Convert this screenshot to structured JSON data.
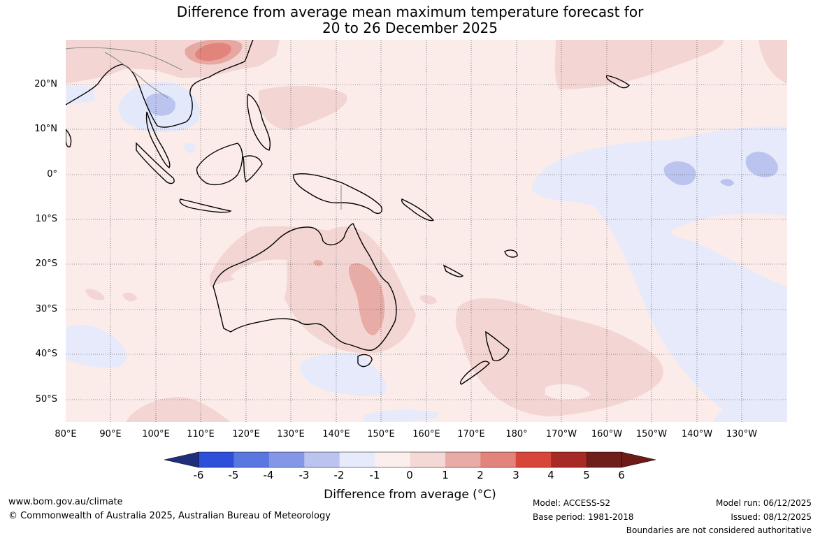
{
  "title": {
    "line1": "Difference from average mean maximum temperature forecast for",
    "line2": "20 to 26 December 2025"
  },
  "map": {
    "lat_labels": [
      "20°N",
      "10°N",
      "0°",
      "10°S",
      "20°S",
      "30°S",
      "40°S",
      "50°S"
    ],
    "lon_labels": [
      "80°E",
      "90°E",
      "100°E",
      "110°E",
      "120°E",
      "130°E",
      "140°E",
      "150°E",
      "160°E",
      "170°E",
      "180°",
      "170°W",
      "160°W",
      "150°W",
      "140°W",
      "130°W"
    ],
    "lat_range": [
      -55,
      30
    ],
    "lon_range": [
      80,
      240
    ],
    "background_anomaly": "0 to 1",
    "regions": [
      {
        "name": "southern-china-warm",
        "anomaly": "2 to 3"
      },
      {
        "name": "indochina-cool",
        "anomaly": "-2 to -1"
      },
      {
        "name": "eastern-australia-warm",
        "anomaly": "2 to 3"
      },
      {
        "name": "central-pacific-cool",
        "anomaly": "-1 to 0"
      },
      {
        "name": "tasman-sea-warm",
        "anomaly": "1 to 2"
      }
    ]
  },
  "colorbar": {
    "title": "Difference from average (°C)",
    "ticks": [
      "-6",
      "-5",
      "-4",
      "-3",
      "-2",
      "-1",
      "0",
      "1",
      "2",
      "3",
      "4",
      "5",
      "6"
    ],
    "colors": [
      "#23398f",
      "#2e4fd9",
      "#5a76e0",
      "#8497e6",
      "#bac4ef",
      "#e6eafa",
      "#fbeeec",
      "#f4d8d6",
      "#e9aba6",
      "#e2847c",
      "#d84539",
      "#a82a24",
      "#701e1a"
    ],
    "end_low_color": "#1f2f7c",
    "end_high_color": "#6e1b18"
  },
  "footer": {
    "website": "www.bom.gov.au/climate",
    "copyright": "© Commonwealth of Australia 2025, Australian Bureau of Meteorology",
    "model": "Model: ACCESS-S2",
    "base_period": "Base period: 1981-2018",
    "model_run": "Model run: 06/12/2025",
    "issued": "Issued: 08/12/2025",
    "disclaimer": "Boundaries are not considered authoritative"
  }
}
